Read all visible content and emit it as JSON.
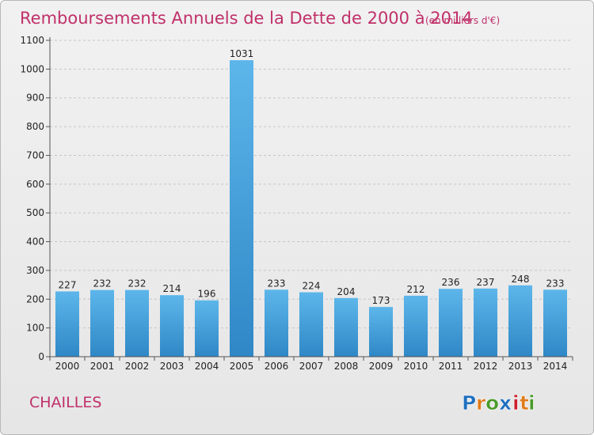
{
  "chart_data": {
    "type": "bar",
    "title": "Remboursements Annuels de la Dette de 2000 à 2014",
    "unit_note": "(en milliers d'€)",
    "categories": [
      "2000",
      "2001",
      "2002",
      "2003",
      "2004",
      "2005",
      "2006",
      "2007",
      "2008",
      "2009",
      "2010",
      "2011",
      "2012",
      "2013",
      "2014"
    ],
    "values": [
      227,
      232,
      232,
      214,
      196,
      1031,
      233,
      224,
      204,
      173,
      212,
      236,
      237,
      248,
      233
    ],
    "ylim": [
      0,
      1100
    ],
    "yticks": [
      0,
      100,
      200,
      300,
      400,
      500,
      600,
      700,
      800,
      900,
      1000,
      1100
    ],
    "grid": "horizontal dashed",
    "bar_color": "#3d9ad8",
    "bar_color_light": "#5db6ea"
  },
  "footer": {
    "city": "CHAILLES",
    "logo": {
      "letters": [
        "P",
        "r",
        "o",
        "x",
        "i",
        "t",
        "i"
      ],
      "colors": [
        "#1f6fbf",
        "#e07a1a",
        "#4a9a2a",
        "#1f6fbf",
        "#cc1f2f",
        "#e07a1a",
        "#4a9a2a"
      ]
    }
  }
}
